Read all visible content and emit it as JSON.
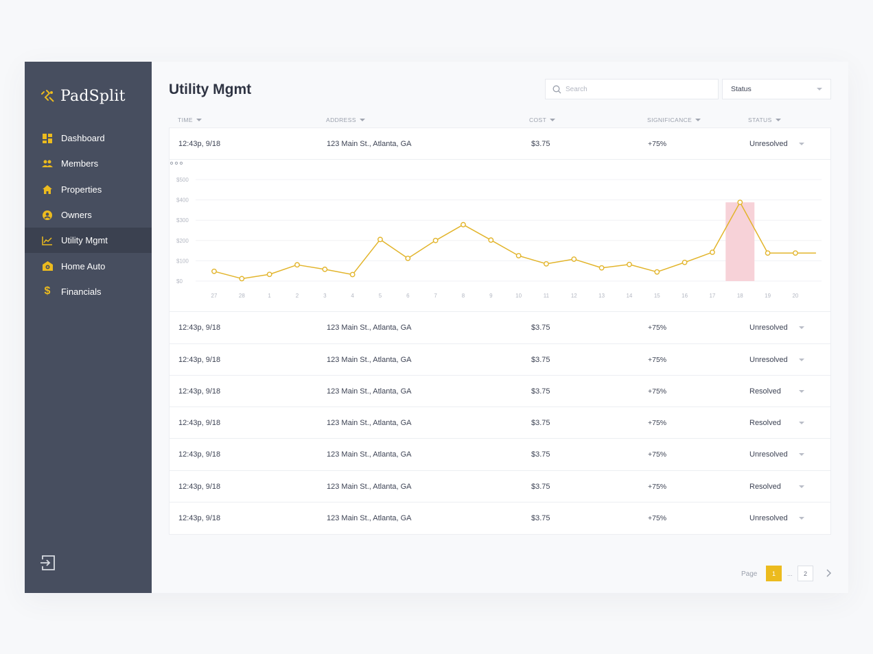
{
  "brand": {
    "name": "PadSplit"
  },
  "sidebar": {
    "items": [
      {
        "label": "Dashboard",
        "icon": "dashboard-icon"
      },
      {
        "label": "Members",
        "icon": "members-icon"
      },
      {
        "label": "Properties",
        "icon": "home-icon"
      },
      {
        "label": "Owners",
        "icon": "user-circle-icon"
      },
      {
        "label": "Utility Mgmt",
        "icon": "line-chart-icon",
        "active": true
      },
      {
        "label": "Home Auto",
        "icon": "home-automation-icon"
      },
      {
        "label": "Financials",
        "icon": "dollar-icon"
      }
    ],
    "logout_icon": "logout-icon"
  },
  "header": {
    "title": "Utility Mgmt",
    "search": {
      "placeholder": "Search",
      "value": ""
    },
    "status_filter": {
      "selected": "Status"
    }
  },
  "table": {
    "columns": [
      "TIME",
      "ADDRESS",
      "COST",
      "SIGNIFICANCE",
      "STATUS"
    ],
    "rows": [
      {
        "time": "12:43p, 9/18",
        "address": "123 Main St., Atlanta, GA",
        "cost": "$3.75",
        "significance": "+75%",
        "status": "Unresolved"
      },
      {
        "time": "12:43p, 9/18",
        "address": "123 Main St., Atlanta, GA",
        "cost": "$3.75",
        "significance": "+75%",
        "status": "Unresolved"
      },
      {
        "time": "12:43p, 9/18",
        "address": "123 Main St., Atlanta, GA",
        "cost": "$3.75",
        "significance": "+75%",
        "status": "Unresolved"
      },
      {
        "time": "12:43p, 9/18",
        "address": "123 Main St., Atlanta, GA",
        "cost": "$3.75",
        "significance": "+75%",
        "status": "Resolved"
      },
      {
        "time": "12:43p, 9/18",
        "address": "123 Main St., Atlanta, GA",
        "cost": "$3.75",
        "significance": "+75%",
        "status": "Resolved"
      },
      {
        "time": "12:43p, 9/18",
        "address": "123 Main St., Atlanta, GA",
        "cost": "$3.75",
        "significance": "+75%",
        "status": "Unresolved"
      },
      {
        "time": "12:43p, 9/18",
        "address": "123 Main St., Atlanta, GA",
        "cost": "$3.75",
        "significance": "+75%",
        "status": "Resolved"
      },
      {
        "time": "12:43p, 9/18",
        "address": "123 Main St., Atlanta, GA",
        "cost": "$3.75",
        "significance": "+75%",
        "status": "Unresolved"
      }
    ]
  },
  "chart_data": {
    "type": "line",
    "title": "",
    "xlabel": "",
    "ylabel": "",
    "x": [
      "27",
      "28",
      "1",
      "2",
      "3",
      "4",
      "5",
      "6",
      "7",
      "8",
      "9",
      "10",
      "11",
      "12",
      "13",
      "14",
      "15",
      "16",
      "17",
      "18",
      "19",
      "20"
    ],
    "series": [
      {
        "values": [
          48,
          12,
          33,
          80,
          58,
          32,
          205,
          112,
          200,
          278,
          202,
          125,
          85,
          108,
          65,
          82,
          45,
          92,
          142,
          388,
          138,
          138
        ],
        "color": "#e2b42a"
      }
    ],
    "yticks": [
      "$0",
      "$100",
      "$200",
      "$300",
      "$400",
      "$500"
    ],
    "ylim": [
      0,
      500
    ],
    "highlight": {
      "x": "18",
      "color": "#f7d2d8"
    },
    "grid": true,
    "legend": "none"
  },
  "pagination": {
    "label": "Page",
    "pages": [
      "1",
      "2"
    ],
    "current": "1",
    "ellipsis": "..."
  },
  "colors": {
    "sidebar": "#474e5f",
    "sidebar_active": "#3b4150",
    "accent": "#ecbb1e",
    "line": "#e2b42a"
  }
}
